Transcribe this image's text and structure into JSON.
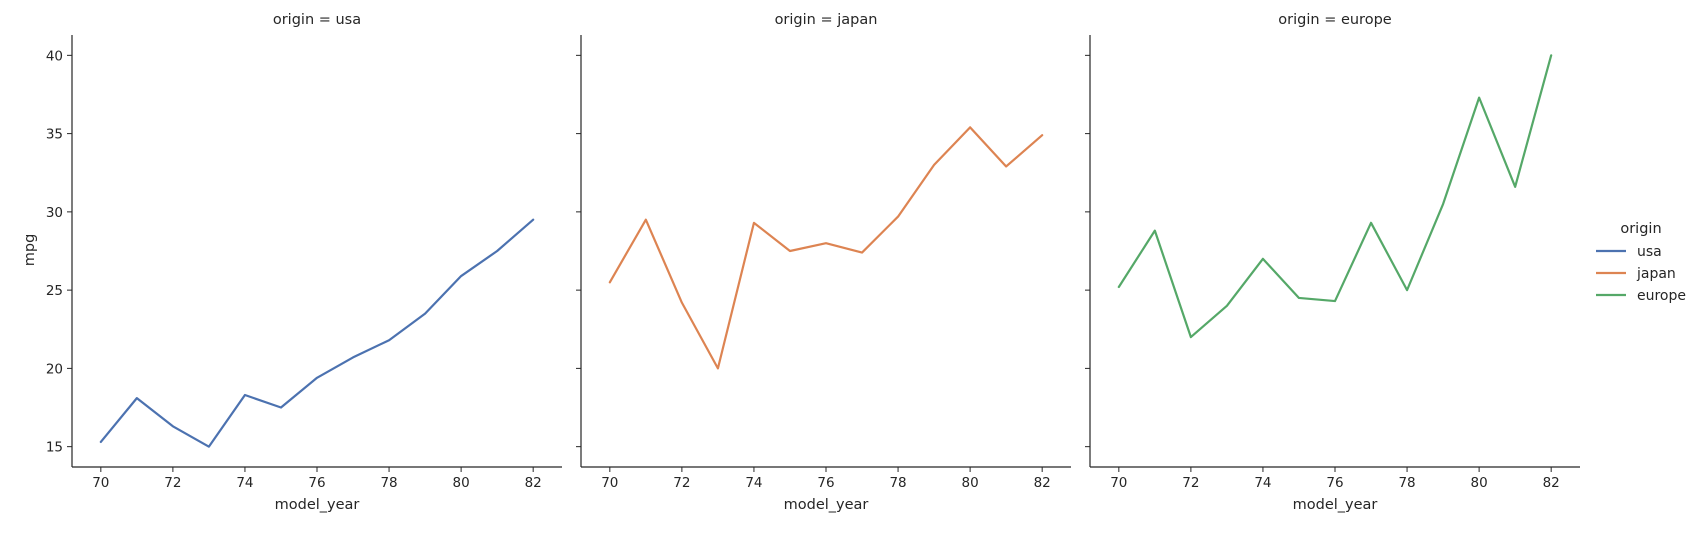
{
  "chart_data": {
    "type": "line",
    "facet_variable": "origin",
    "x_label": "model_year",
    "y_label": "mpg",
    "x": [
      70,
      71,
      72,
      73,
      74,
      75,
      76,
      77,
      78,
      79,
      80,
      81,
      82
    ],
    "x_ticks": [
      70,
      72,
      74,
      76,
      78,
      80,
      82
    ],
    "x_tick_labels": [
      "70",
      "72",
      "74",
      "76",
      "78",
      "80",
      "82"
    ],
    "xlim": [
      69.2,
      82.8
    ],
    "y_ticks": [
      15,
      20,
      25,
      30,
      35,
      40
    ],
    "y_tick_labels": [
      "15",
      "20",
      "25",
      "30",
      "35",
      "40"
    ],
    "ylim": [
      13.7,
      41.3
    ],
    "grid": false,
    "shared_y": true,
    "legend": {
      "title": "origin",
      "placement": "right"
    },
    "panels": [
      {
        "title": "origin = usa",
        "series": [
          {
            "name": "usa",
            "color": "#4c72b0",
            "values": [
              15.3,
              18.1,
              16.3,
              15.0,
              18.3,
              17.5,
              19.4,
              20.7,
              21.8,
              23.5,
              25.9,
              27.5,
              29.5
            ]
          }
        ]
      },
      {
        "title": "origin = japan",
        "series": [
          {
            "name": "japan",
            "color": "#dd8452",
            "values": [
              25.5,
              29.5,
              24.2,
              20.0,
              29.3,
              27.5,
              28.0,
              27.4,
              29.7,
              33.0,
              35.4,
              32.9,
              34.9
            ]
          }
        ]
      },
      {
        "title": "origin = europe",
        "series": [
          {
            "name": "europe",
            "color": "#55a868",
            "values": [
              25.2,
              28.8,
              22.0,
              24.0,
              27.0,
              24.5,
              24.3,
              29.3,
              25.0,
              30.5,
              37.3,
              31.6,
              40.0
            ]
          }
        ]
      }
    ]
  }
}
